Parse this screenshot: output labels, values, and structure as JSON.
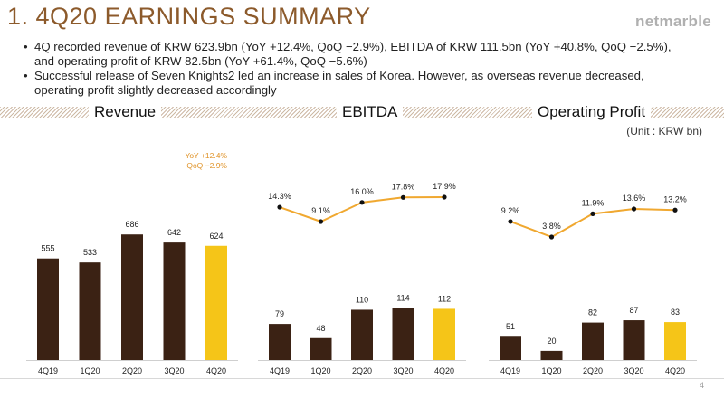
{
  "header": {
    "title": "1. 4Q20 EARNINGS SUMMARY",
    "logo": "netmarble"
  },
  "bullets": [
    {
      "line1": "4Q recorded revenue of KRW 623.9bn (YoY +12.4%, QoQ −2.9%), EBITDA of KRW 111.5bn (YoY +40.8%, QoQ −2.5%),",
      "line2": "and operating profit of KRW 82.5bn (YoY +61.4%, QoQ −5.6%)"
    },
    {
      "line1": "Successful release of Seven Knights2 led an increase in sales of Korea. However, as overseas revenue decreased,",
      "line2": "operating profit slightly decreased accordingly"
    }
  ],
  "sections": {
    "revenue": "Revenue",
    "ebitda": "EBITDA",
    "op": "Operating Profit"
  },
  "unit": "(Unit : KRW bn)",
  "page_number": "4",
  "colors": {
    "bar": "#3b2214",
    "highlight": "#f5c518",
    "line": "#f0a830",
    "accent_text": "#e0942a",
    "title": "#8c5a2b"
  },
  "chart_data": [
    {
      "type": "bar",
      "title": "Revenue",
      "categories": [
        "4Q19",
        "1Q20",
        "2Q20",
        "3Q20",
        "4Q20"
      ],
      "values": [
        555,
        533,
        686,
        642,
        624
      ],
      "highlight_index": 4,
      "annotations": [
        "YoY +12.4%",
        "QoQ −2.9%"
      ],
      "ylim": [
        0,
        760
      ]
    },
    {
      "type": "bar+line",
      "title": "EBITDA",
      "categories": [
        "4Q19",
        "1Q20",
        "2Q20",
        "3Q20",
        "4Q20"
      ],
      "bars": {
        "values": [
          79,
          48,
          110,
          114,
          112
        ],
        "highlight_index": 4,
        "ylim": [
          0,
          140
        ]
      },
      "line": {
        "values": [
          14.3,
          9.1,
          16.0,
          17.8,
          17.9
        ],
        "labels": [
          "14.3%",
          "9.1%",
          "16.0%",
          "17.8%",
          "17.9%"
        ]
      }
    },
    {
      "type": "bar+line",
      "title": "Operating Profit",
      "categories": [
        "4Q19",
        "1Q20",
        "2Q20",
        "3Q20",
        "4Q20"
      ],
      "bars": {
        "values": [
          51,
          20,
          82,
          87,
          83
        ],
        "highlight_index": 4,
        "ylim": [
          0,
          140
        ]
      },
      "line": {
        "values": [
          9.2,
          3.8,
          11.9,
          13.6,
          13.2
        ],
        "labels": [
          "9.2%",
          "3.8%",
          "11.9%",
          "13.6%",
          "13.2%"
        ]
      }
    }
  ]
}
